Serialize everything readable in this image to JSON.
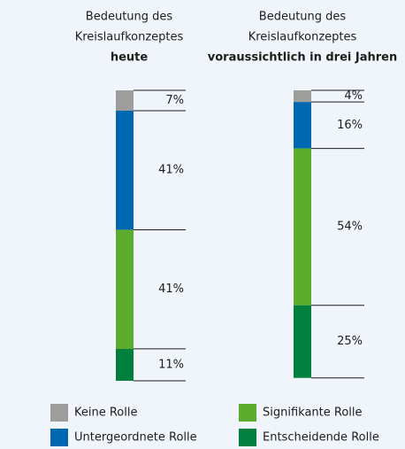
{
  "chart_data": {
    "type": "stacked_bar",
    "title_lines": [
      "Bedeutung des",
      "Kreislaufkonzeptes"
    ],
    "categories": [
      "heute",
      "voraussichtlich in drei Jahren"
    ],
    "ylim": [
      0,
      100
    ],
    "series": [
      {
        "name": "Keine Rolle",
        "color": "#9d9d9c",
        "values": [
          7,
          4
        ],
        "value_labels": [
          "7%",
          "4%"
        ]
      },
      {
        "name": "Untergeordnete Rolle",
        "color": "#0067b1",
        "values": [
          41,
          16
        ],
        "value_labels": [
          "41%",
          "16%"
        ]
      },
      {
        "name": "Signifikante Rolle",
        "color": "#5bab2d",
        "values": [
          41,
          54
        ],
        "value_labels": [
          "41%",
          "54%"
        ]
      },
      {
        "name": "Entscheidende Rolle",
        "color": "#00803c",
        "values": [
          11,
          25
        ],
        "value_labels": [
          "11%",
          "25%"
        ]
      }
    ]
  }
}
